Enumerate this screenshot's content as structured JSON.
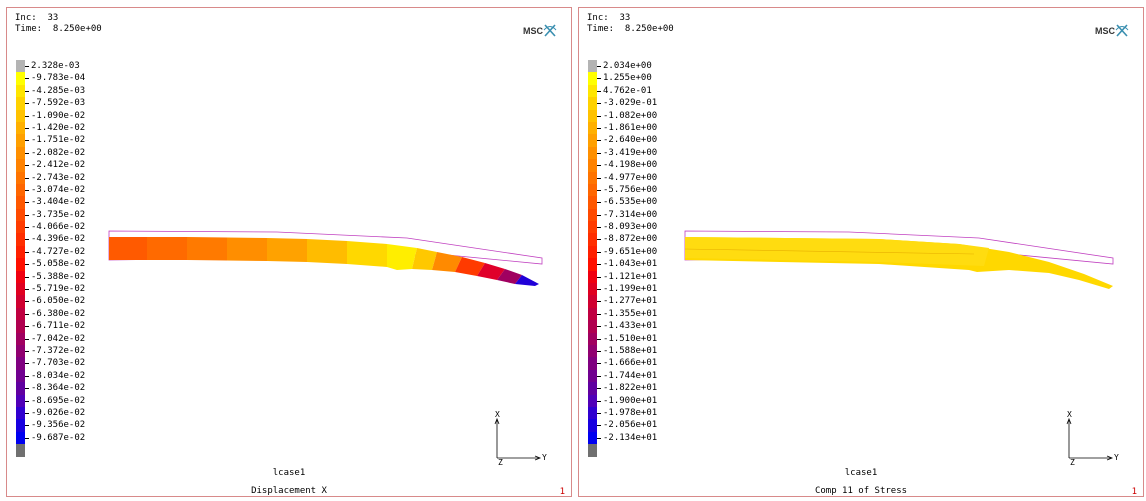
{
  "left": {
    "inc_label": "Inc:  33",
    "time_label": "Time:  8.250e+00",
    "logo_text": "MSC",
    "legend_values": [
      "2.328e-03",
      "-9.783e-04",
      "-4.285e-03",
      "-7.592e-03",
      "-1.090e-02",
      "-1.420e-02",
      "-1.751e-02",
      "-2.082e-02",
      "-2.412e-02",
      "-2.743e-02",
      "-3.074e-02",
      "-3.404e-02",
      "-3.735e-02",
      "-4.066e-02",
      "-4.396e-02",
      "-4.727e-02",
      "-5.058e-02",
      "-5.388e-02",
      "-5.719e-02",
      "-6.050e-02",
      "-6.380e-02",
      "-6.711e-02",
      "-7.042e-02",
      "-7.372e-02",
      "-7.703e-02",
      "-8.034e-02",
      "-8.364e-02",
      "-8.695e-02",
      "-9.026e-02",
      "-9.356e-02",
      "-9.687e-02"
    ],
    "legend_colors": [
      "#b4b4b4",
      "#ffff00",
      "#ffe600",
      "#ffd200",
      "#ffc200",
      "#ffb000",
      "#ffa000",
      "#ff9000",
      "#ff8200",
      "#ff7400",
      "#ff6600",
      "#ff5800",
      "#ff4a00",
      "#ff3c00",
      "#ff2e00",
      "#ff2000",
      "#ff1000",
      "#f00010",
      "#e00020",
      "#d00030",
      "#c00040",
      "#b00050",
      "#a00060",
      "#900070",
      "#800080",
      "#700090",
      "#6000a0",
      "#5000b8",
      "#3000d0",
      "#1800e0",
      "#0000f0",
      "#707070"
    ],
    "triad_x": "X",
    "triad_y": "Y",
    "triad_z": "Z",
    "lcase": "lcase1",
    "title": "Displacement X",
    "viewport_number": "1"
  },
  "right": {
    "inc_label": "Inc:  33",
    "time_label": "Time:  8.250e+00",
    "logo_text": "MSC",
    "legend_values": [
      "2.034e+00",
      "1.255e+00",
      "4.762e-01",
      "-3.029e-01",
      "-1.082e+00",
      "-1.861e+00",
      "-2.640e+00",
      "-3.419e+00",
      "-4.198e+00",
      "-4.977e+00",
      "-5.756e+00",
      "-6.535e+00",
      "-7.314e+00",
      "-8.093e+00",
      "-8.872e+00",
      "-9.651e+00",
      "-1.043e+01",
      "-1.121e+01",
      "-1.199e+01",
      "-1.277e+01",
      "-1.355e+01",
      "-1.433e+01",
      "-1.510e+01",
      "-1.588e+01",
      "-1.666e+01",
      "-1.744e+01",
      "-1.822e+01",
      "-1.900e+01",
      "-1.978e+01",
      "-2.056e+01",
      "-2.134e+01"
    ],
    "legend_colors": [
      "#b4b4b4",
      "#ffff00",
      "#ffe600",
      "#ffd200",
      "#ffc200",
      "#ffb000",
      "#ffa000",
      "#ff9000",
      "#ff8200",
      "#ff7400",
      "#ff6600",
      "#ff5800",
      "#ff4a00",
      "#ff3c00",
      "#ff2e00",
      "#ff2000",
      "#ff1000",
      "#f00010",
      "#e00020",
      "#d00030",
      "#c00040",
      "#b00050",
      "#a00060",
      "#900070",
      "#800080",
      "#700090",
      "#6000a0",
      "#5000b8",
      "#3000d0",
      "#1800e0",
      "#0000f0",
      "#707070"
    ],
    "triad_x": "X",
    "triad_y": "Y",
    "triad_z": "Z",
    "lcase": "lcase1",
    "title": "Comp 11 of Stress",
    "viewport_number": "1"
  }
}
